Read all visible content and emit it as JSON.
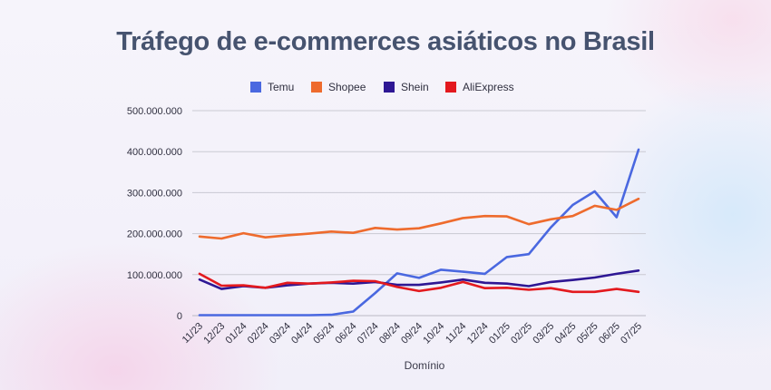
{
  "chart_data": {
    "type": "line",
    "title": "Tráfego de e-commerces asiáticos no Brasil",
    "xlabel": "Domínio",
    "ylabel": "",
    "ylim": [
      0,
      500000000
    ],
    "yticks": [
      0,
      100000000,
      200000000,
      300000000,
      400000000,
      500000000
    ],
    "ytick_labels": [
      "0",
      "100.000.000",
      "200.000.000",
      "300.000.000",
      "400.000.000",
      "500.000.000"
    ],
    "grid": true,
    "legend_position": "top-center",
    "categories": [
      "11/23",
      "12/23",
      "01/24",
      "02/24",
      "03/24",
      "04/24",
      "05/24",
      "06/24",
      "07/24",
      "08/24",
      "09/24",
      "10/24",
      "11/24",
      "12/24",
      "01/25",
      "02/25",
      "03/25",
      "04/25",
      "05/25",
      "06/25",
      "07/25"
    ],
    "series": [
      {
        "name": "Temu",
        "color": "#4a68e0",
        "values": [
          1000000,
          1000000,
          1000000,
          1000000,
          1000000,
          1000000,
          2000000,
          10000000,
          55000000,
          103000000,
          92000000,
          112000000,
          107000000,
          102000000,
          143000000,
          150000000,
          215000000,
          270000000,
          303000000,
          240000000,
          405000000
        ]
      },
      {
        "name": "Shopee",
        "color": "#ee6b2d",
        "values": [
          193000000,
          188000000,
          201000000,
          191000000,
          196000000,
          200000000,
          205000000,
          202000000,
          214000000,
          210000000,
          213000000,
          225000000,
          238000000,
          243000000,
          242000000,
          223000000,
          235000000,
          243000000,
          268000000,
          258000000,
          285000000
        ]
      },
      {
        "name": "Shein",
        "color": "#2e1794",
        "values": [
          88000000,
          65000000,
          72000000,
          68000000,
          74000000,
          78000000,
          80000000,
          78000000,
          82000000,
          75000000,
          75000000,
          81000000,
          88000000,
          80000000,
          78000000,
          72000000,
          82000000,
          87000000,
          93000000,
          102000000,
          110000000
        ]
      },
      {
        "name": "AliExpress",
        "color": "#e3191e",
        "values": [
          102000000,
          73000000,
          74000000,
          68000000,
          80000000,
          78000000,
          81000000,
          85000000,
          84000000,
          70000000,
          60000000,
          68000000,
          82000000,
          67000000,
          68000000,
          63000000,
          67000000,
          58000000,
          58000000,
          65000000,
          58000000
        ]
      }
    ]
  }
}
